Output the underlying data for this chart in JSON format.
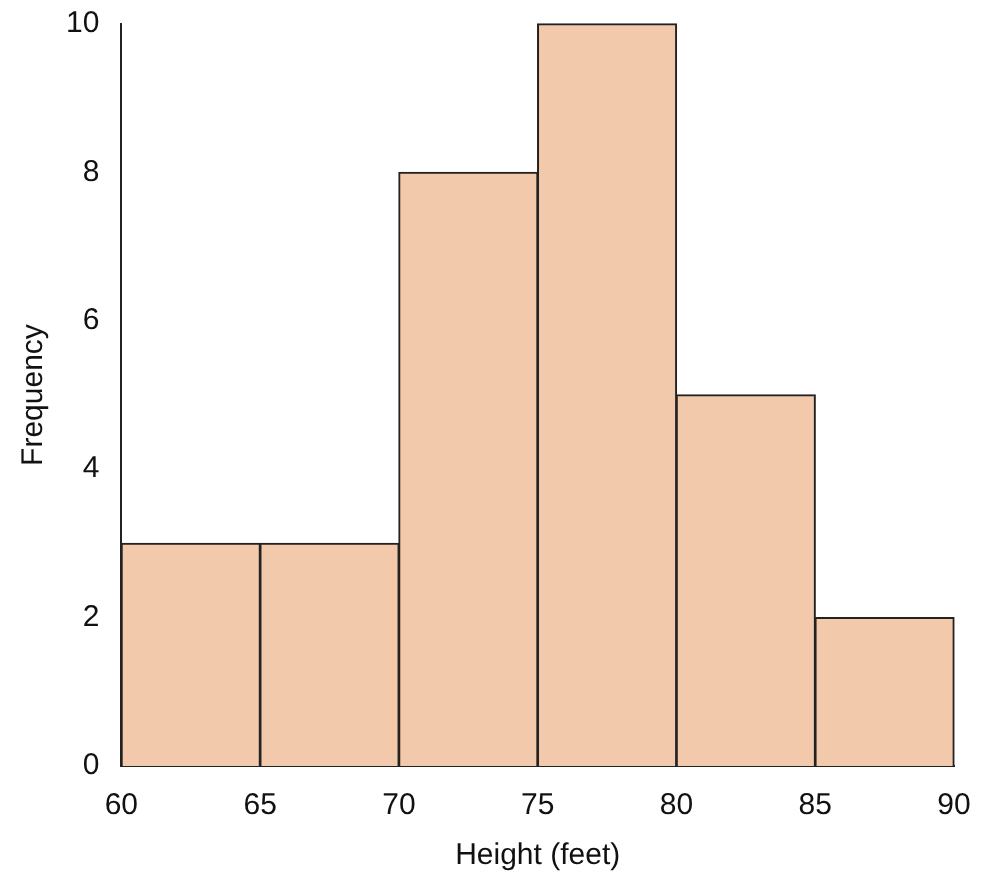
{
  "chart_data": {
    "type": "histogram",
    "xlabel": "Height (feet)",
    "ylabel": "Frequency",
    "bins": [
      60,
      65,
      70,
      75,
      80,
      85,
      90
    ],
    "values": [
      3,
      3,
      8,
      10,
      5,
      2
    ],
    "color": "#f3c9ab",
    "xlim": [
      60,
      90
    ],
    "xticks": [
      60,
      65,
      70,
      75,
      80,
      85,
      90
    ],
    "ylim": [
      0,
      10
    ],
    "yticks": [
      0,
      2,
      4,
      6,
      8,
      10
    ],
    "grid": false,
    "legend": false
  }
}
